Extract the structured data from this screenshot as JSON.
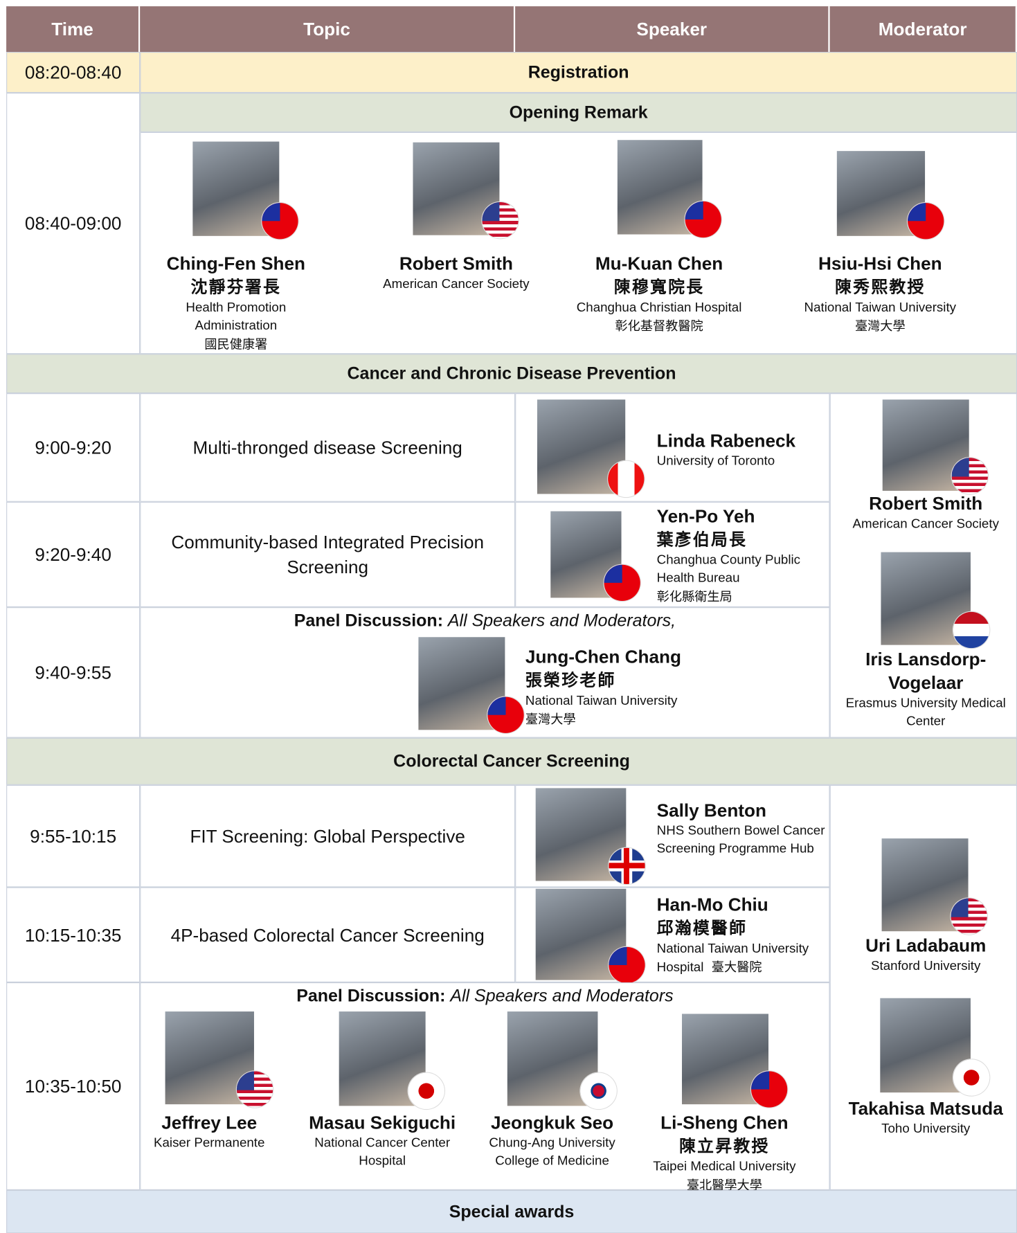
{
  "header": [
    "Time",
    "Topic",
    "Speaker",
    "Moderator"
  ],
  "registration": {
    "time": "08:20-08:40",
    "title": "Registration"
  },
  "opening": {
    "time": "08:40-09:00",
    "title": "Opening Remark",
    "speakers": [
      {
        "name": "Ching-Fen Shen",
        "title_zh": "沈靜芬署長",
        "affiliation": "Health Promotion Administration",
        "affiliation_zh": "國民健康署"
      },
      {
        "name": "Robert Smith",
        "affiliation": "American Cancer Society"
      },
      {
        "name": "Mu-Kuan Chen",
        "title_zh": "陳穆寬院長",
        "affiliation": "Changhua Christian Hospital",
        "affiliation_zh": "彰化基督教醫院"
      },
      {
        "name": "Hsiu-Hsi Chen",
        "title_zh": "陳秀熙教授",
        "affiliation": "National Taiwan University",
        "affiliation_zh": "臺灣大學"
      }
    ]
  },
  "sessions": [
    {
      "title": "Cancer and Chronic Disease Prevention",
      "talks": [
        {
          "time": "9:00-9:20",
          "topic": "Multi-thronged disease Screening",
          "speaker": {
            "name": "Linda Rabeneck",
            "affiliation": "University of Toronto"
          }
        },
        {
          "time": "9:20-9:40",
          "topic": "Community-based Integrated Precision Screening",
          "speaker": {
            "name": "Yen-Po Yeh",
            "title_zh": "葉彥伯局長",
            "affiliation": "Changhua County Public Health Bureau",
            "affiliation_zh": "彰化縣衛生局"
          }
        }
      ],
      "panel": {
        "time": "9:40-9:55",
        "label": "Panel Discussion:",
        "note": "All Speakers and Moderators,",
        "speakers": [
          {
            "name": "Jung-Chen Chang",
            "title_zh": "張榮珍老師",
            "affiliation": "National Taiwan University",
            "affiliation_zh": "臺灣大學"
          }
        ]
      },
      "moderators": [
        {
          "name": "Robert Smith",
          "affiliation": "American Cancer Society"
        },
        {
          "name": "Iris Lansdorp-Vogelaar",
          "affiliation": "Erasmus University Medical Center"
        }
      ]
    },
    {
      "title": "Colorectal Cancer Screening",
      "talks": [
        {
          "time": "9:55-10:15",
          "topic": "FIT Screening: Global Perspective",
          "speaker": {
            "name": "Sally Benton",
            "affiliation": "NHS Southern Bowel Cancer Screening Programme Hub"
          }
        },
        {
          "time": "10:15-10:35",
          "topic": "4P-based Colorectal Cancer Screening",
          "speaker": {
            "name": "Han-Mo Chiu",
            "title_zh": "邱瀚模醫師",
            "affiliation": "National Taiwan University Hospital",
            "affiliation_zh": "臺大醫院"
          }
        }
      ],
      "panel": {
        "time": "10:35-10:50",
        "label": "Panel Discussion:",
        "note": "All Speakers and Moderators",
        "speakers": [
          {
            "name": "Jeffrey Lee",
            "affiliation": "Kaiser Permanente"
          },
          {
            "name": "Masau Sekiguchi",
            "affiliation": "National Cancer Center Hospital"
          },
          {
            "name": "Jeongkuk Seo",
            "affiliation": "Chung-Ang University College of Medicine"
          },
          {
            "name": "Li-Sheng Chen",
            "title_zh": "陳立昇教授",
            "affiliation": "Taipei Medical University",
            "affiliation_zh": "臺北醫學大學"
          }
        ]
      },
      "moderators": [
        {
          "name": "Uri Ladabaum",
          "affiliation": "Stanford University"
        },
        {
          "name": "Takahisa Matsuda",
          "affiliation": "Toho University"
        }
      ]
    }
  ],
  "closing": {
    "title": "Special awards"
  }
}
